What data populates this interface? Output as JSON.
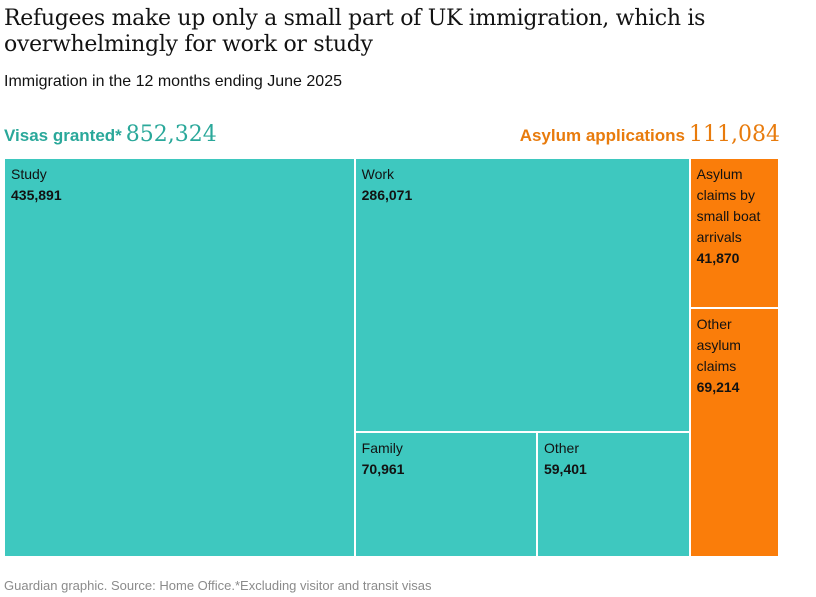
{
  "title": "Refugees make up only a small part of UK immigration, which is overwhelmingly for work or study",
  "subtitle": "Immigration in the 12 months ending June 2025",
  "visas_header": {
    "label": "Visas granted*",
    "total": "852,324"
  },
  "asylum_header": {
    "label": "Asylum applications",
    "total": "111,084"
  },
  "source": "Guardian graphic. Source: Home Office.*Excluding visitor and transit visas",
  "colors": {
    "visas": "#3ec8bf",
    "asylum": "#fa7d0a",
    "visas_text": "#2aa89a",
    "asylum_text": "#e87b0c"
  },
  "chart_data": {
    "type": "treemap",
    "title": "Refugees make up only a small part of UK immigration, which is overwhelmingly for work or study",
    "subtitle": "Immigration in the 12 months ending June 2025",
    "groups": [
      {
        "name": "Visas granted*",
        "total": 852324,
        "items": [
          {
            "label": "Study",
            "value": 435891,
            "display": "435,891"
          },
          {
            "label": "Work",
            "value": 286071,
            "display": "286,071"
          },
          {
            "label": "Family",
            "value": 70961,
            "display": "70,961"
          },
          {
            "label": "Other",
            "value": 59401,
            "display": "59,401"
          }
        ]
      },
      {
        "name": "Asylum applications",
        "total": 111084,
        "items": [
          {
            "label": "Asylum claims by small boat arrivals",
            "value": 41870,
            "display": "41,870"
          },
          {
            "label": "Other asylum claims",
            "value": 69214,
            "display": "69,214"
          }
        ]
      }
    ]
  }
}
